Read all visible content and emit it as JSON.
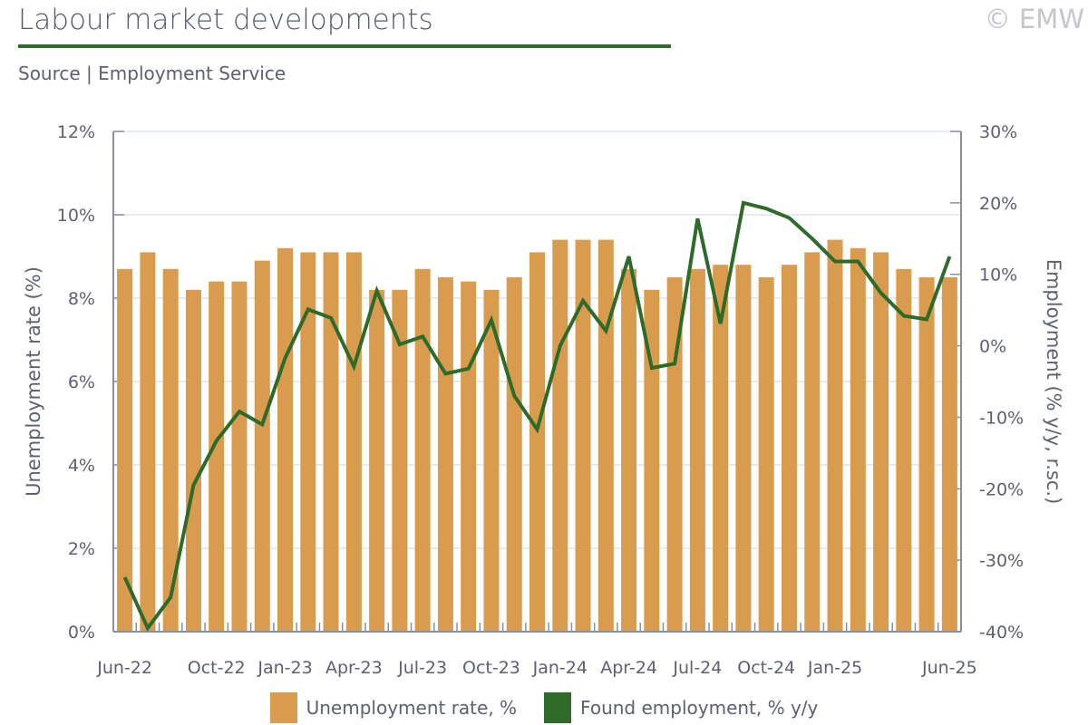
{
  "header": {
    "title": "Labour market developments",
    "copyright": "© EMW",
    "source": "Source | Employment Service"
  },
  "colors": {
    "bars": "#d99c4e",
    "line": "#2e6b2a",
    "grid": "#dde3ee",
    "axis": "#8a8fa0"
  },
  "chart_data": {
    "type": "bar+line",
    "categories": [
      "Jun-22",
      "Jul-22",
      "Aug-22",
      "Sep-22",
      "Oct-22",
      "Nov-22",
      "Dec-22",
      "Jan-23",
      "Feb-23",
      "Mar-23",
      "Apr-23",
      "May-23",
      "Jun-23",
      "Jul-23",
      "Aug-23",
      "Sep-23",
      "Oct-23",
      "Nov-23",
      "Dec-23",
      "Jan-24",
      "Feb-24",
      "Mar-24",
      "Apr-24",
      "May-24",
      "Jun-24",
      "Jul-24",
      "Aug-24",
      "Sep-24",
      "Oct-24",
      "Nov-24",
      "Dec-24",
      "Jan-25",
      "Feb-25",
      "Mar-25",
      "Apr-25",
      "May-25",
      "Jun-25"
    ],
    "xtick_labels": [
      "Jun-22",
      "Oct-22",
      "Jan-23",
      "Apr-23",
      "Jul-23",
      "Oct-23",
      "Jan-24",
      "Apr-24",
      "Jul-24",
      "Oct-24",
      "Jan-25",
      "Jun-25"
    ],
    "series": [
      {
        "name": "Unemployment rate, %",
        "type": "bar",
        "axis": "left",
        "values": [
          8.7,
          9.1,
          8.7,
          8.2,
          8.4,
          8.4,
          8.9,
          9.2,
          9.1,
          9.1,
          9.1,
          8.2,
          8.2,
          8.7,
          8.5,
          8.4,
          8.2,
          8.5,
          9.1,
          9.4,
          9.4,
          9.4,
          8.7,
          8.2,
          8.5,
          8.7,
          8.8,
          8.8,
          8.5,
          8.8,
          9.1,
          9.4,
          9.2,
          9.1,
          8.7,
          8.5,
          8.5
        ]
      },
      {
        "name": "Found employment, % y/y",
        "type": "line",
        "axis": "right",
        "values": [
          -32.4,
          -39.5,
          -35.2,
          -19.5,
          -13.3,
          -9.2,
          -11.0,
          -1.7,
          5.1,
          3.9,
          -2.9,
          7.7,
          0.2,
          1.3,
          -3.9,
          -3.2,
          3.6,
          -7.0,
          -11.7,
          0.0,
          6.3,
          2.1,
          12.5,
          -3.1,
          -2.5,
          17.8,
          3.1,
          20.0,
          19.2,
          17.9,
          15.0,
          11.8,
          11.8,
          7.4,
          4.2,
          3.7,
          12.5
        ]
      }
    ],
    "left_axis": {
      "label": "Unemployment rate (%)",
      "range": [
        0,
        12
      ],
      "ticks": [
        "0%",
        "2%",
        "4%",
        "6%",
        "8%",
        "10%",
        "12%"
      ]
    },
    "right_axis": {
      "label": "Employment (% y/y, r.sc.)",
      "range": [
        -40,
        30
      ],
      "ticks": [
        "-40%",
        "-30%",
        "-20%",
        "-10%",
        "0%",
        "10%",
        "20%",
        "30%"
      ]
    },
    "grid": true,
    "legend_position": "bottom"
  }
}
